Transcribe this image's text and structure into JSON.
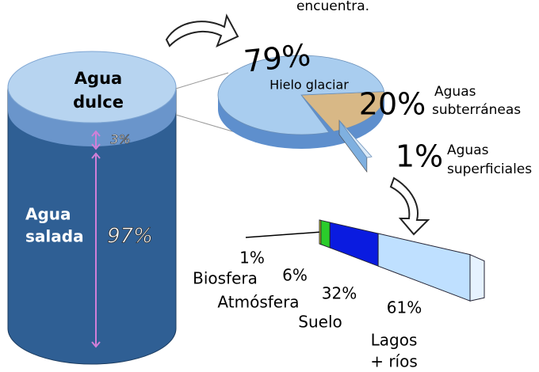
{
  "header": {
    "caption": "encuentra."
  },
  "cylinder": {
    "fresh": {
      "name": [
        "Agua",
        "dulce"
      ],
      "value": 3,
      "label": "3%"
    },
    "salt": {
      "name": [
        "Agua",
        "salada"
      ],
      "value": 97,
      "label": "97%"
    }
  },
  "fresh_water": [
    {
      "name": [
        "Hielo glaciar"
      ],
      "value": 79,
      "label": "79%",
      "color": "#a9cdef"
    },
    {
      "name": [
        "Aguas",
        "subterráneas"
      ],
      "value": 20,
      "label": "20%",
      "color": "#d8b886"
    },
    {
      "name": [
        "Aguas",
        "superficiales"
      ],
      "value": 1,
      "label": "1%",
      "color": "#dcebf8"
    }
  ],
  "surface_water": [
    {
      "name": [
        "Biosfera"
      ],
      "value": 1,
      "label": "1%",
      "color": "#f2ee1c"
    },
    {
      "name": [
        "Atmósfera"
      ],
      "value": 6,
      "label": "6%",
      "color": "#2bcc2b"
    },
    {
      "name": [
        "Suelo"
      ],
      "value": 32,
      "label": "32%",
      "color": "#0a1be0"
    },
    {
      "name": [
        "Lagos",
        "+ ríos"
      ],
      "value": 61,
      "label": "61%",
      "color": "#bfe0ff"
    }
  ]
}
